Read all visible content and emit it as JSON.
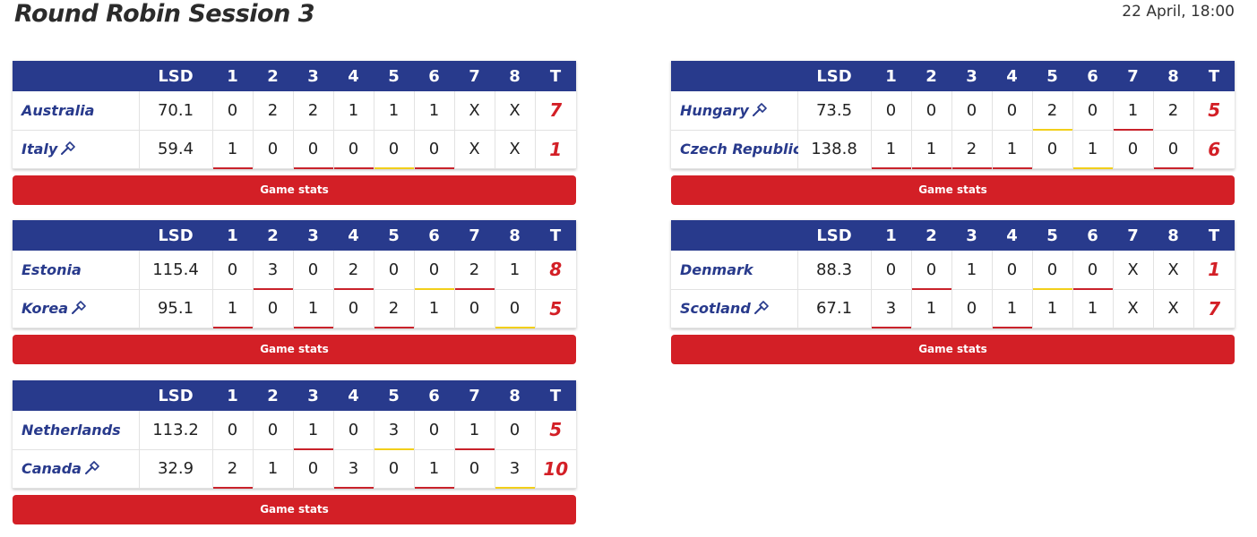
{
  "page": {
    "title": "Round Robin Session 3",
    "date": "22 April, 18:00"
  },
  "header": {
    "lsd": "LSD",
    "ends": [
      "1",
      "2",
      "3",
      "4",
      "5",
      "6",
      "7",
      "8"
    ],
    "total": "T"
  },
  "button_label": "Game stats",
  "colors": {
    "header": "#283a8c",
    "accent": "#d31f26",
    "hammer_end": "#c9222b",
    "blank_end": "#f2cf1a"
  },
  "games": [
    {
      "rows": [
        {
          "team": "Australia",
          "hammer": false,
          "lsd": "70.1",
          "ends": [
            "0",
            "2",
            "2",
            "1",
            "1",
            "1",
            "X",
            "X"
          ],
          "marks": [
            "",
            "",
            "",
            "",
            "",
            "",
            "",
            ""
          ],
          "total": "7"
        },
        {
          "team": "Italy",
          "hammer": true,
          "lsd": "59.4",
          "ends": [
            "1",
            "0",
            "0",
            "0",
            "0",
            "0",
            "X",
            "X"
          ],
          "marks": [
            "red",
            "",
            "red",
            "red",
            "yellow",
            "red",
            "",
            ""
          ],
          "total": "1"
        }
      ]
    },
    {
      "rows": [
        {
          "team": "Estonia",
          "hammer": false,
          "lsd": "115.4",
          "ends": [
            "0",
            "3",
            "0",
            "2",
            "0",
            "0",
            "2",
            "1"
          ],
          "marks": [
            "",
            "red",
            "",
            "red",
            "",
            "yellow",
            "red",
            ""
          ],
          "total": "8"
        },
        {
          "team": "Korea",
          "hammer": true,
          "lsd": "95.1",
          "ends": [
            "1",
            "0",
            "1",
            "0",
            "2",
            "1",
            "0",
            "0"
          ],
          "marks": [
            "red",
            "",
            "red",
            "",
            "red",
            "",
            "",
            "yellow"
          ],
          "total": "5"
        }
      ]
    },
    {
      "rows": [
        {
          "team": "Netherlands",
          "hammer": false,
          "lsd": "113.2",
          "ends": [
            "0",
            "0",
            "1",
            "0",
            "3",
            "0",
            "1",
            "0"
          ],
          "marks": [
            "",
            "",
            "red",
            "",
            "yellow",
            "",
            "red",
            ""
          ],
          "total": "5"
        },
        {
          "team": "Canada",
          "hammer": true,
          "lsd": "32.9",
          "ends": [
            "2",
            "1",
            "0",
            "3",
            "0",
            "1",
            "0",
            "3"
          ],
          "marks": [
            "red",
            "",
            "",
            "red",
            "",
            "red",
            "",
            "yellow"
          ],
          "total": "10"
        }
      ]
    },
    {
      "rows": [
        {
          "team": "Hungary",
          "hammer": true,
          "lsd": "73.5",
          "ends": [
            "0",
            "0",
            "0",
            "0",
            "2",
            "0",
            "1",
            "2"
          ],
          "marks": [
            "",
            "",
            "",
            "",
            "yellow",
            "",
            "red",
            ""
          ],
          "total": "5"
        },
        {
          "team": "Czech Republic",
          "hammer": false,
          "lsd": "138.8",
          "ends": [
            "1",
            "1",
            "2",
            "1",
            "0",
            "1",
            "0",
            "0"
          ],
          "marks": [
            "red",
            "red",
            "red",
            "red",
            "",
            "yellow",
            "",
            "red"
          ],
          "total": "6"
        }
      ]
    },
    {
      "rows": [
        {
          "team": "Denmark",
          "hammer": false,
          "lsd": "88.3",
          "ends": [
            "0",
            "0",
            "1",
            "0",
            "0",
            "0",
            "X",
            "X"
          ],
          "marks": [
            "",
            "red",
            "",
            "",
            "yellow",
            "red",
            "",
            ""
          ],
          "total": "1"
        },
        {
          "team": "Scotland",
          "hammer": true,
          "lsd": "67.1",
          "ends": [
            "3",
            "1",
            "0",
            "1",
            "1",
            "1",
            "X",
            "X"
          ],
          "marks": [
            "red",
            "",
            "",
            "red",
            "",
            "",
            "",
            ""
          ],
          "total": "7"
        }
      ]
    }
  ]
}
